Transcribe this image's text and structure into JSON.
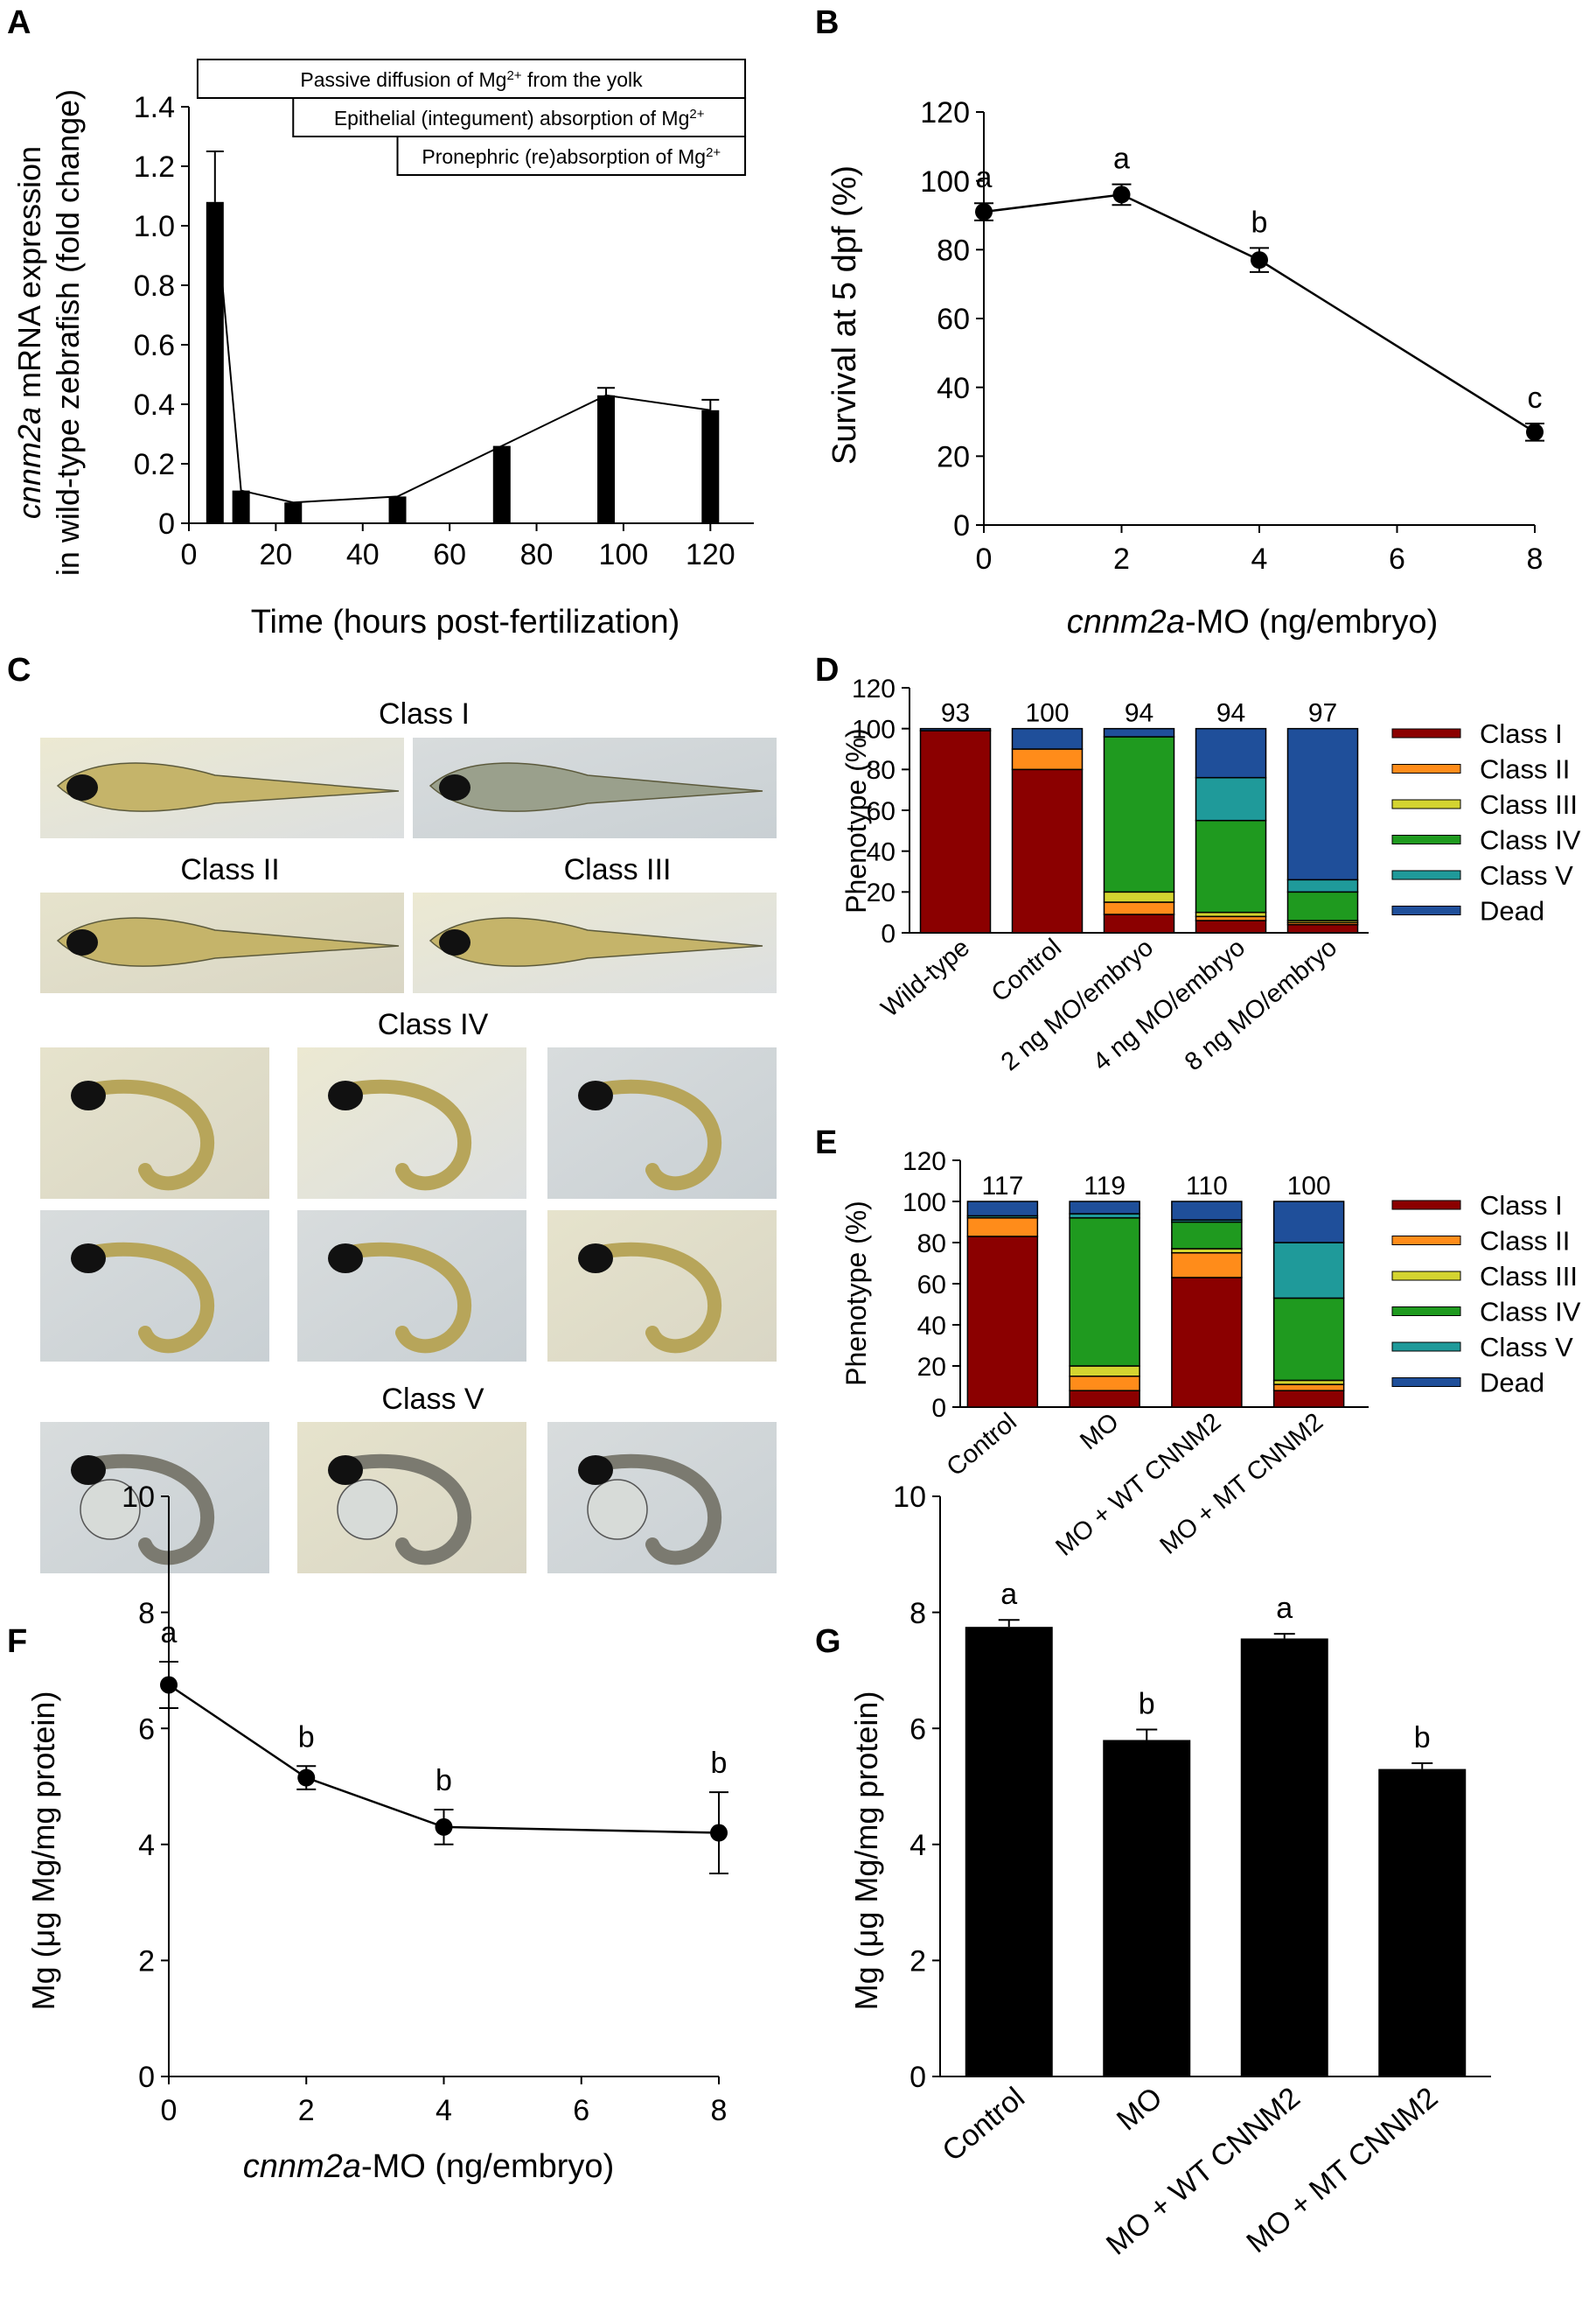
{
  "panels": {
    "A": {
      "letter": "A",
      "ylabel_italic": "cnnm2a",
      "ylabel_rest": " mRNA expression",
      "ylabel_line2": "in wild-type zebrafish (fold change)",
      "xlabel": "Time (hours post-fertilization)",
      "annotations": [
        {
          "text": "Passive diffusion of Mg",
          "sup": "2+",
          "tail": " from the yolk",
          "from": 2,
          "to": 128
        },
        {
          "text": "Epithelial (integument) absorption of Mg",
          "sup": "2+",
          "tail": "",
          "from": 24,
          "to": 128
        },
        {
          "text": "Pronephric (re)absorption of Mg",
          "sup": "2+",
          "tail": "",
          "from": 48,
          "to": 128
        }
      ]
    },
    "B": {
      "letter": "B",
      "ylabel": "Survival at 5 dpf (%)",
      "xlabel_italic": "cnnm2a",
      "xlabel_rest": "-MO (ng/embryo)"
    },
    "C": {
      "letter": "C",
      "classes": [
        "Class I",
        "Class II",
        "Class III",
        "Class IV",
        "Class V"
      ]
    },
    "D": {
      "letter": "D",
      "ylabel": "Phenotype (%)"
    },
    "E": {
      "letter": "E",
      "ylabel": "Phenotype (%)"
    },
    "F": {
      "letter": "F",
      "ylabel": "Mg (μg Mg/mg protein)",
      "xlabel_italic": "cnnm2a",
      "xlabel_rest": "-MO (ng/embryo)"
    },
    "G": {
      "letter": "G",
      "ylabel": "Mg (μg Mg/mg protein)"
    }
  },
  "legend": {
    "items": [
      "Class I",
      "Class II",
      "Class III",
      "Class IV",
      "Class V",
      "Dead"
    ],
    "colors": [
      "#8b0000",
      "#ff8c1a",
      "#d4d430",
      "#1f9a1f",
      "#1f9a9a",
      "#1f4f9a"
    ]
  },
  "chart_data": [
    {
      "panel": "A",
      "type": "bar",
      "x": [
        6,
        12,
        24,
        48,
        72,
        96,
        120
      ],
      "values": [
        1.08,
        0.11,
        0.07,
        0.09,
        0.26,
        0.43,
        0.38
      ],
      "errors": [
        0.17,
        0.0,
        0.0,
        0.0,
        0.0,
        0.025,
        0.035
      ],
      "trend_line": true,
      "xlim": [
        0,
        130
      ],
      "ylim": [
        0,
        1.4
      ],
      "xticks": [
        0,
        20,
        40,
        60,
        80,
        100,
        120
      ],
      "yticks": [
        0,
        0.2,
        0.4,
        0.6,
        0.8,
        1.0,
        1.2,
        1.4
      ],
      "ytick_labels": [
        "0",
        "0.2",
        "0.4",
        "0.6",
        "0.8",
        "1.0",
        "1.2",
        "1.4"
      ],
      "xlabel": "Time (hours post-fertilization)",
      "ylabel": "cnnm2a mRNA expression in wild-type zebrafish (fold change)"
    },
    {
      "panel": "B",
      "type": "line",
      "x": [
        0,
        2,
        4,
        8
      ],
      "values": [
        91,
        96,
        77,
        27
      ],
      "errors": [
        2.5,
        3,
        3.5,
        2.5
      ],
      "letters": [
        "a",
        "a",
        "b",
        "c"
      ],
      "xlim": [
        0,
        8
      ],
      "ylim": [
        0,
        120
      ],
      "xticks": [
        0,
        2,
        4,
        6,
        8
      ],
      "yticks": [
        0,
        20,
        40,
        60,
        80,
        100,
        120
      ],
      "xlabel": "cnnm2a-MO (ng/embryo)",
      "ylabel": "Survival at 5 dpf (%)"
    },
    {
      "panel": "D",
      "type": "bar",
      "stacked": true,
      "categories": [
        "Wild-type",
        "Control",
        "2 ng MO/embryo",
        "4 ng MO/embryo",
        "8 ng MO/embryo"
      ],
      "n": [
        "93",
        "100",
        "94",
        "94",
        "97"
      ],
      "ylim": [
        0,
        120
      ],
      "yticks": [
        0,
        20,
        40,
        60,
        80,
        100,
        120
      ],
      "ylabel": "Phenotype (%)",
      "series": [
        {
          "name": "Class I",
          "values": [
            99,
            80,
            9,
            6,
            4
          ]
        },
        {
          "name": "Class II",
          "values": [
            0,
            10,
            6,
            2,
            1
          ]
        },
        {
          "name": "Class III",
          "values": [
            0,
            0,
            5,
            2,
            1
          ]
        },
        {
          "name": "Class IV",
          "values": [
            0,
            0,
            76,
            45,
            14
          ]
        },
        {
          "name": "Class V",
          "values": [
            0,
            0,
            0,
            21,
            6
          ]
        },
        {
          "name": "Dead",
          "values": [
            1,
            10,
            4,
            24,
            74
          ]
        }
      ]
    },
    {
      "panel": "E",
      "type": "bar",
      "stacked": true,
      "categories": [
        "Control",
        "MO",
        "MO + WT CNNM2",
        "MO + MT CNNM2"
      ],
      "n": [
        "117",
        "119",
        "110",
        "100"
      ],
      "ylim": [
        0,
        120
      ],
      "yticks": [
        0,
        20,
        40,
        60,
        80,
        100,
        120
      ],
      "ylabel": "Phenotype (%)",
      "series": [
        {
          "name": "Class I",
          "values": [
            83,
            8,
            63,
            8
          ]
        },
        {
          "name": "Class II",
          "values": [
            9,
            7,
            12,
            3
          ]
        },
        {
          "name": "Class III",
          "values": [
            0,
            5,
            2,
            2
          ]
        },
        {
          "name": "Class IV",
          "values": [
            0,
            72,
            13,
            40
          ]
        },
        {
          "name": "Class V",
          "values": [
            1,
            2,
            1,
            27
          ]
        },
        {
          "name": "Dead",
          "values": [
            7,
            6,
            9,
            20
          ]
        }
      ]
    },
    {
      "panel": "F",
      "type": "line",
      "x": [
        0,
        2,
        4,
        8
      ],
      "values": [
        6.75,
        5.15,
        4.3,
        4.2
      ],
      "errors": [
        0.4,
        0.2,
        0.3,
        0.7
      ],
      "letters": [
        "a",
        "b",
        "b",
        "b"
      ],
      "xlim": [
        0,
        8
      ],
      "ylim": [
        0,
        10
      ],
      "xticks": [
        0,
        2,
        4,
        6,
        8
      ],
      "yticks": [
        0,
        2,
        4,
        6,
        8,
        10
      ],
      "xlabel": "cnnm2a-MO (ng/embryo)",
      "ylabel": "Mg (μg Mg/mg protein)"
    },
    {
      "panel": "G",
      "type": "bar",
      "categories": [
        "Control",
        "MO",
        "MO + WT CNNM2",
        "MO + MT CNNM2"
      ],
      "values": [
        7.75,
        5.8,
        7.55,
        5.3
      ],
      "errors": [
        0.12,
        0.18,
        0.08,
        0.1
      ],
      "letters": [
        "a",
        "b",
        "a",
        "b"
      ],
      "ylim": [
        0,
        10
      ],
      "yticks": [
        0,
        2,
        4,
        6,
        8,
        10
      ],
      "ylabel": "Mg (μg Mg/mg protein)"
    }
  ]
}
